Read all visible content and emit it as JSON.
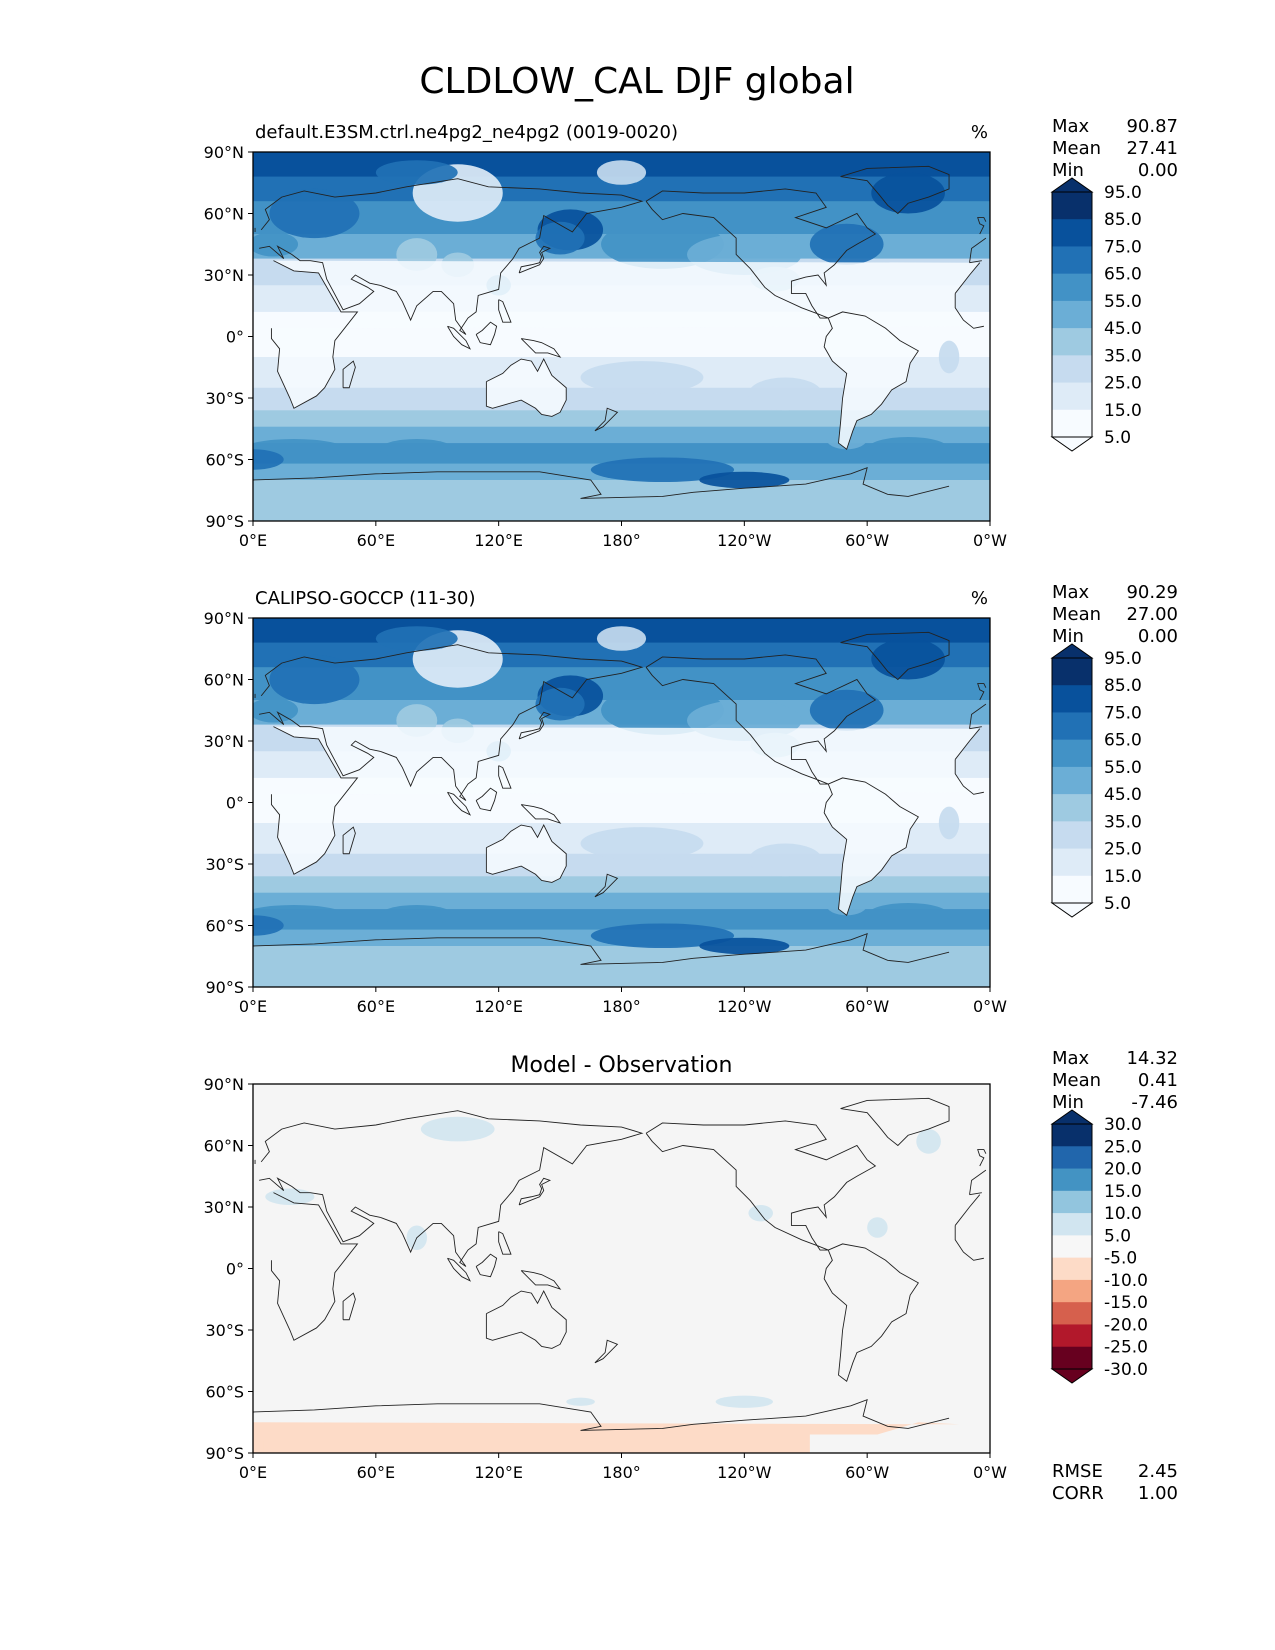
{
  "title": "CLDLOW_CAL DJF global",
  "x_ticks": [
    "0°E",
    "60°E",
    "120°E",
    "180°",
    "120°W",
    "60°W",
    "0°W"
  ],
  "y_ticks": [
    "90°N",
    "60°N",
    "30°N",
    "0°",
    "30°S",
    "60°S",
    "90°S"
  ],
  "panels": [
    {
      "id": "model",
      "title_left": "default.E3SM.ctrl.ne4pg2_ne4pg2 (0019-0020)",
      "title_center": "",
      "units": "%",
      "stats": [
        {
          "label": "Max",
          "value": "90.87"
        },
        {
          "label": "Mean",
          "value": "27.41"
        },
        {
          "label": "Min",
          "value": "0.00"
        }
      ],
      "colorbar": {
        "labels": [
          "95.0",
          "85.0",
          "75.0",
          "65.0",
          "55.0",
          "45.0",
          "35.0",
          "25.0",
          "15.0",
          "5.0"
        ],
        "colors": [
          "#08306b",
          "#08519c",
          "#2171b5",
          "#4292c6",
          "#6baed6",
          "#9ecae1",
          "#c6dbef",
          "#deebf7",
          "#f7fbff"
        ]
      },
      "metrics": []
    },
    {
      "id": "observation",
      "title_left": "CALIPSO-GOCCP (11-30)",
      "title_center": "",
      "units": "%",
      "stats": [
        {
          "label": "Max",
          "value": "90.29"
        },
        {
          "label": "Mean",
          "value": "27.00"
        },
        {
          "label": "Min",
          "value": "0.00"
        }
      ],
      "colorbar": {
        "labels": [
          "95.0",
          "85.0",
          "75.0",
          "65.0",
          "55.0",
          "45.0",
          "35.0",
          "25.0",
          "15.0",
          "5.0"
        ],
        "colors": [
          "#08306b",
          "#08519c",
          "#2171b5",
          "#4292c6",
          "#6baed6",
          "#9ecae1",
          "#c6dbef",
          "#deebf7",
          "#f7fbff"
        ]
      },
      "metrics": []
    },
    {
      "id": "difference",
      "title_left": "",
      "title_center": "Model - Observation",
      "units": "",
      "stats": [
        {
          "label": "Max",
          "value": "14.32"
        },
        {
          "label": "Mean",
          "value": "0.41"
        },
        {
          "label": "Min",
          "value": "-7.46"
        }
      ],
      "colorbar": {
        "labels": [
          "30.0",
          "25.0",
          "20.0",
          "15.0",
          "10.0",
          "5.0",
          "-5.0",
          "-10.0",
          "-15.0",
          "-20.0",
          "-25.0",
          "-30.0"
        ],
        "colors": [
          "#08306b",
          "#2166ac",
          "#4393c3",
          "#92c5de",
          "#d1e5f0",
          "#f7f7f7",
          "#fddbc7",
          "#f4a582",
          "#d6604d",
          "#b2182b",
          "#67001f"
        ]
      },
      "metrics": [
        {
          "label": "RMSE",
          "value": "2.45"
        },
        {
          "label": "CORR",
          "value": "1.00"
        }
      ]
    }
  ],
  "map_palette": {
    "seq": [
      "#f7fbff",
      "#deebf7",
      "#c6dbef",
      "#9ecae1",
      "#6baed6",
      "#4292c6",
      "#2171b5",
      "#08519c",
      "#08306b"
    ],
    "diff_neutral": "#f5f5f5",
    "diff_pos": "#d1e5f0",
    "diff_pos2": "#92c5de",
    "diff_neg": "#fddbc7",
    "coast": "#222222"
  }
}
